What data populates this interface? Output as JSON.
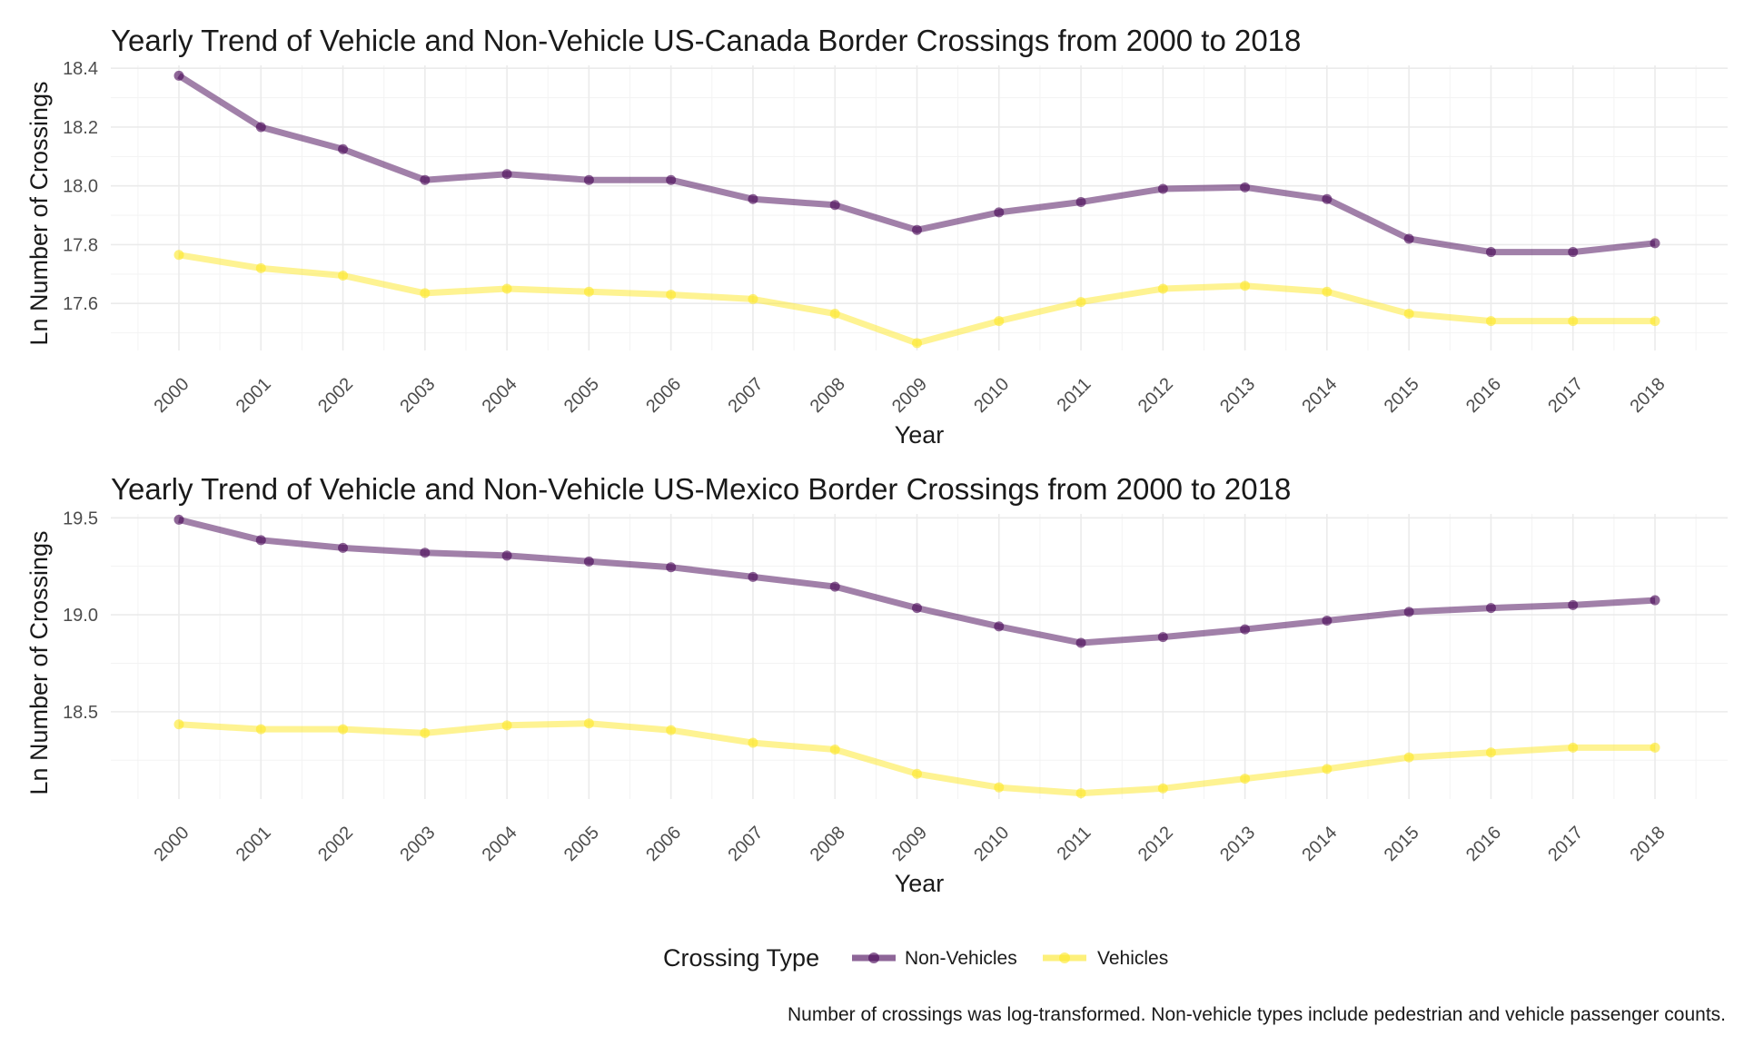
{
  "chart_data": [
    {
      "type": "line",
      "title": "Yearly Trend of Vehicle and Non-Vehicle US-Canada Border Crossings from 2000 to 2018",
      "xlabel": "Year",
      "ylabel": "Ln Number of Crossings",
      "x": [
        "2000",
        "2001",
        "2002",
        "2003",
        "2004",
        "2005",
        "2006",
        "2007",
        "2008",
        "2009",
        "2010",
        "2011",
        "2012",
        "2013",
        "2014",
        "2015",
        "2016",
        "2017",
        "2018"
      ],
      "ylim": [
        17.44,
        18.41
      ],
      "yticks": [
        17.6,
        17.8,
        18.0,
        18.2,
        18.4
      ],
      "ytick_labels": [
        "17.6",
        "17.8",
        "18.0",
        "18.2",
        "18.4"
      ],
      "grid": true,
      "series": [
        {
          "name": "Non-Vehicles",
          "color": "#440154",
          "values": [
            18.375,
            18.2,
            18.125,
            18.02,
            18.04,
            18.02,
            18.02,
            17.955,
            17.935,
            17.85,
            17.91,
            17.945,
            17.99,
            17.995,
            17.955,
            17.82,
            17.775,
            17.775,
            17.805
          ]
        },
        {
          "name": "Vehicles",
          "color": "#FDE725",
          "values": [
            17.765,
            17.72,
            17.695,
            17.635,
            17.65,
            17.64,
            17.63,
            17.615,
            17.565,
            17.465,
            17.54,
            17.605,
            17.65,
            17.66,
            17.64,
            17.565,
            17.54,
            17.54,
            17.54
          ]
        }
      ]
    },
    {
      "type": "line",
      "title": "Yearly Trend of Vehicle and Non-Vehicle US-Mexico Border Crossings from 2000 to 2018",
      "xlabel": "Year",
      "ylabel": "Ln Number of Crossings",
      "x": [
        "2000",
        "2001",
        "2002",
        "2003",
        "2004",
        "2005",
        "2006",
        "2007",
        "2008",
        "2009",
        "2010",
        "2011",
        "2012",
        "2013",
        "2014",
        "2015",
        "2016",
        "2017",
        "2018"
      ],
      "ylim": [
        18.05,
        19.52
      ],
      "yticks": [
        18.5,
        19.0,
        19.5
      ],
      "ytick_labels": [
        "18.5",
        "19.0",
        "19.5"
      ],
      "grid": true,
      "series": [
        {
          "name": "Non-Vehicles",
          "color": "#440154",
          "values": [
            19.49,
            19.385,
            19.345,
            19.32,
            19.305,
            19.275,
            19.245,
            19.195,
            19.145,
            19.035,
            18.94,
            18.855,
            18.885,
            18.925,
            18.97,
            19.015,
            19.035,
            19.05,
            19.075
          ]
        },
        {
          "name": "Vehicles",
          "color": "#FDE725",
          "values": [
            18.435,
            18.41,
            18.41,
            18.39,
            18.43,
            18.44,
            18.405,
            18.34,
            18.305,
            18.18,
            18.11,
            18.08,
            18.105,
            18.155,
            18.205,
            18.265,
            18.29,
            18.315,
            18.315
          ]
        }
      ]
    }
  ],
  "legend": {
    "title": "Crossing Type",
    "position": "bottom",
    "items": [
      {
        "label": "Non-Vehicles",
        "color": "#440154"
      },
      {
        "label": "Vehicles",
        "color": "#FDE725"
      }
    ]
  },
  "caption": "Number of crossings was log-transformed. Non-vehicle types include pedestrian and vehicle passenger counts."
}
